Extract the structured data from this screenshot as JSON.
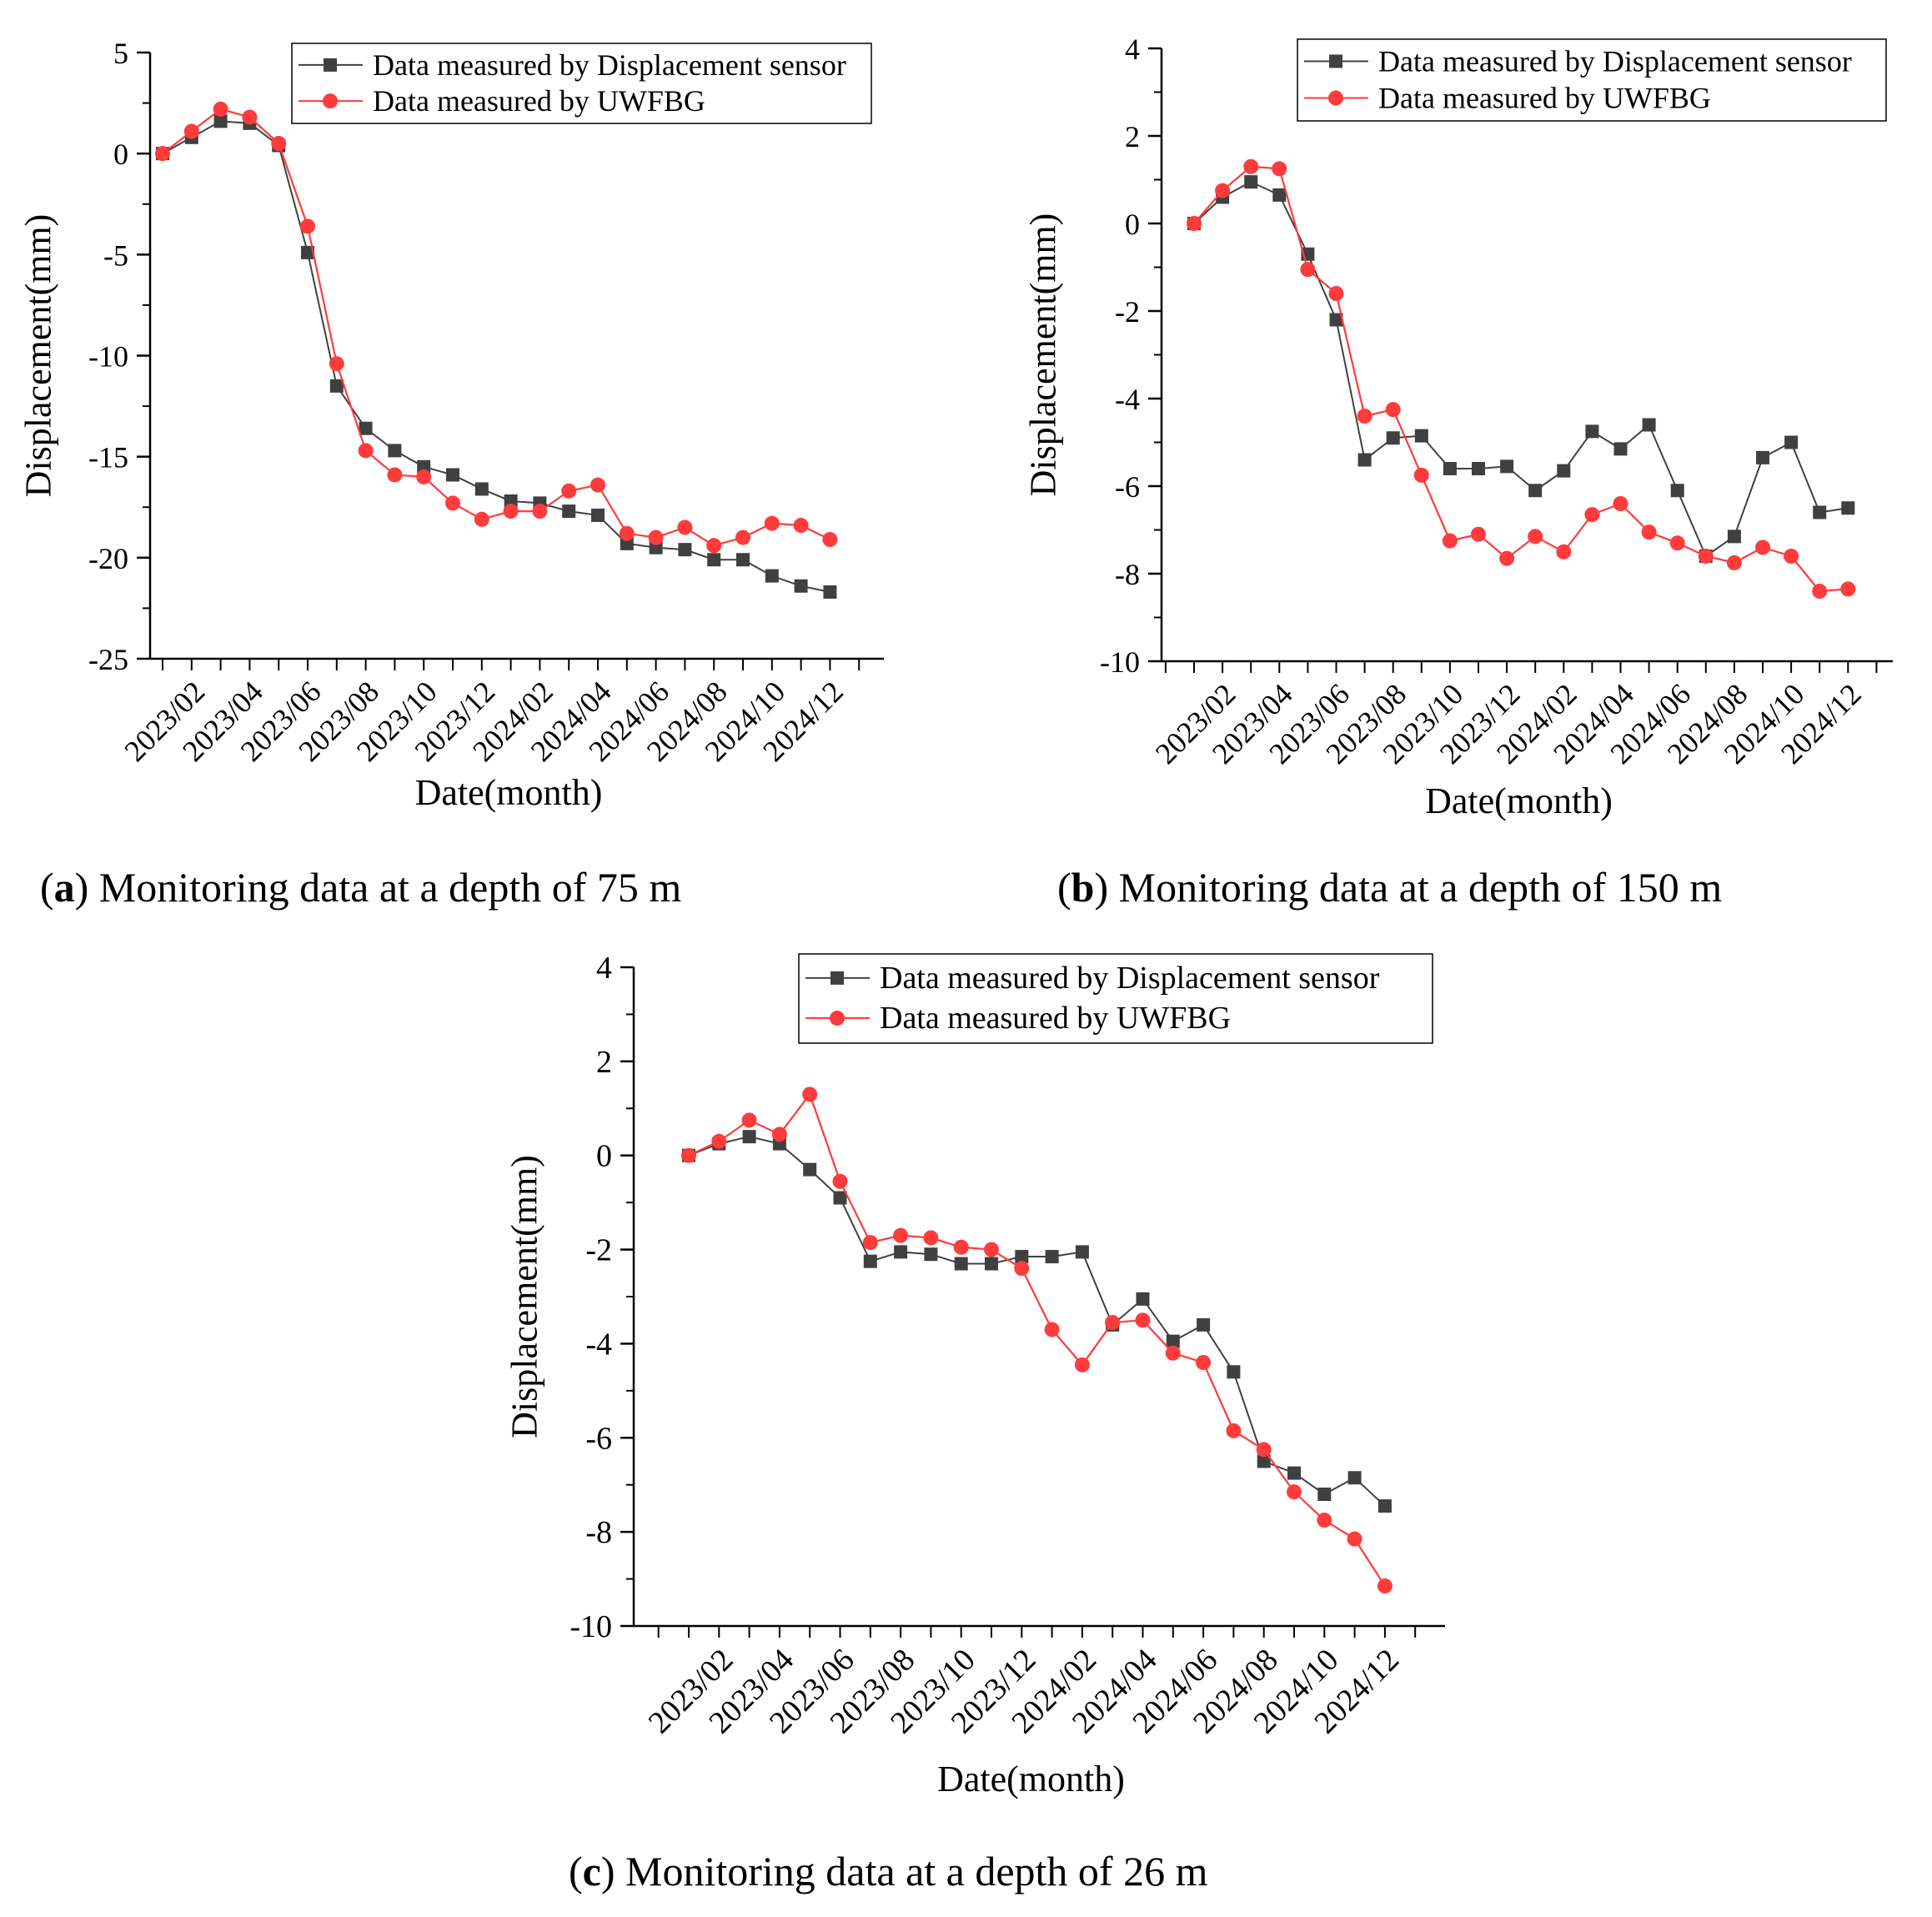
{
  "chart_data": [
    {
      "id": "a",
      "type": "line",
      "xlabel": "Date(month)",
      "ylabel": "Displacement(mm)",
      "ylim": [
        -25,
        5
      ],
      "yticks": [
        5,
        0,
        -5,
        -10,
        -15,
        -20,
        -25
      ],
      "x_tick_labels": [
        "2023/02",
        "2023/04",
        "2023/06",
        "2023/08",
        "2023/10",
        "2023/12",
        "2024/02",
        "2024/04",
        "2024/06",
        "2024/08",
        "2024/10",
        "2024/12"
      ],
      "x": [
        "2023/01",
        "2023/02",
        "2023/03",
        "2023/04",
        "2023/05",
        "2023/06",
        "2023/07",
        "2023/08",
        "2023/09",
        "2023/10",
        "2023/11",
        "2023/12",
        "2024/01",
        "2024/02",
        "2024/03",
        "2024/04",
        "2024/05",
        "2024/06",
        "2024/07",
        "2024/08",
        "2024/09",
        "2024/10",
        "2024/11",
        "2024/12"
      ],
      "legend_position": "top-right",
      "series": [
        {
          "name": "Data measured by Displacement sensor",
          "color": "#404040",
          "marker": "square",
          "values": [
            0,
            0.8,
            1.6,
            1.5,
            0.4,
            -4.9,
            -11.5,
            -13.6,
            -14.7,
            -15.5,
            -15.9,
            -16.6,
            -17.2,
            -17.3,
            -17.7,
            -17.9,
            -19.3,
            -19.5,
            -19.6,
            -20.1,
            -20.1,
            -20.9,
            -21.4,
            -21.7
          ]
        },
        {
          "name": "Data measured by UWFBG",
          "color": "#ff3b3b",
          "marker": "circle",
          "values": [
            0,
            1.1,
            2.2,
            1.8,
            0.5,
            -3.6,
            -10.4,
            -14.7,
            -15.9,
            -16.0,
            -17.3,
            -18.1,
            -17.7,
            -17.7,
            -16.7,
            -16.4,
            -18.8,
            -19.0,
            -18.5,
            -19.4,
            -19.0,
            -18.3,
            -18.4,
            -19.1
          ]
        }
      ]
    },
    {
      "id": "b",
      "type": "line",
      "xlabel": "Date(month)",
      "ylabel": "Displacement(mm)",
      "ylim": [
        -10,
        4
      ],
      "yticks": [
        4,
        2,
        0,
        -2,
        -4,
        -6,
        -8,
        -10
      ],
      "x_tick_labels": [
        "2023/02",
        "2023/04",
        "2023/06",
        "2023/08",
        "2023/10",
        "2023/12",
        "2024/02",
        "2024/04",
        "2024/06",
        "2024/08",
        "2024/10",
        "2024/12"
      ],
      "x": [
        "2023/01",
        "2023/02",
        "2023/03",
        "2023/04",
        "2023/05",
        "2023/06",
        "2023/07",
        "2023/08",
        "2023/09",
        "2023/10",
        "2023/11",
        "2023/12",
        "2024/01",
        "2024/02",
        "2024/03",
        "2024/04",
        "2024/05",
        "2024/06",
        "2024/07",
        "2024/08",
        "2024/09",
        "2024/10",
        "2024/11",
        "2024/12"
      ],
      "legend_position": "top-right",
      "series": [
        {
          "name": "Data measured by Displacement sensor",
          "color": "#404040",
          "marker": "square",
          "values": [
            0,
            0.6,
            0.95,
            0.65,
            -0.7,
            -2.2,
            -5.4,
            -4.9,
            -4.85,
            -5.6,
            -5.6,
            -5.55,
            -6.1,
            -5.65,
            -4.75,
            -5.15,
            -4.6,
            -6.1,
            -7.6,
            -7.15,
            -5.35,
            -5.0,
            -6.6,
            -6.5
          ]
        },
        {
          "name": "Data measured by UWFBG",
          "color": "#ff3b3b",
          "marker": "circle",
          "values": [
            0,
            0.75,
            1.3,
            1.25,
            -1.05,
            -1.6,
            -4.4,
            -4.25,
            -5.75,
            -7.25,
            -7.1,
            -7.65,
            -7.15,
            -7.5,
            -6.65,
            -6.4,
            -7.05,
            -7.3,
            -7.6,
            -7.75,
            -7.4,
            -7.6,
            -8.4,
            -8.35
          ]
        }
      ]
    },
    {
      "id": "c",
      "type": "line",
      "xlabel": "Date(month)",
      "ylabel": "Displacement(mm)",
      "ylim": [
        -10,
        4
      ],
      "yticks": [
        4,
        2,
        0,
        -2,
        -4,
        -6,
        -8,
        -10
      ],
      "x_tick_labels": [
        "2023/02",
        "2023/04",
        "2023/06",
        "2023/08",
        "2023/10",
        "2023/12",
        "2024/02",
        "2024/04",
        "2024/06",
        "2024/08",
        "2024/10",
        "2024/12"
      ],
      "x": [
        "2023/01",
        "2023/02",
        "2023/03",
        "2023/04",
        "2023/05",
        "2023/06",
        "2023/07",
        "2023/08",
        "2023/09",
        "2023/10",
        "2023/11",
        "2023/12",
        "2024/01",
        "2024/02",
        "2024/03",
        "2024/04",
        "2024/05",
        "2024/06",
        "2024/07",
        "2024/08",
        "2024/09",
        "2024/10",
        "2024/11",
        "2024/12"
      ],
      "legend_position": "top-right",
      "series": [
        {
          "name": "Data measured by Displacement sensor",
          "color": "#404040",
          "marker": "square",
          "values": [
            0,
            0.25,
            0.4,
            0.25,
            -0.3,
            -0.9,
            -2.25,
            -2.05,
            -2.1,
            -2.3,
            -2.3,
            -2.15,
            -2.15,
            -2.05,
            -3.6,
            -3.05,
            -3.95,
            -3.6,
            -4.6,
            -6.5,
            -6.75,
            -7.2,
            -6.85,
            -7.45
          ]
        },
        {
          "name": "Data measured by UWFBG",
          "color": "#ff3b3b",
          "marker": "circle",
          "values": [
            0,
            0.3,
            0.75,
            0.45,
            1.3,
            -0.55,
            -1.85,
            -1.7,
            -1.75,
            -1.95,
            -2.0,
            -2.4,
            -3.7,
            -4.45,
            -3.55,
            -3.5,
            -4.2,
            -4.4,
            -5.85,
            -6.25,
            -7.15,
            -7.75,
            -8.15,
            -9.15
          ]
        }
      ]
    }
  ],
  "captions": [
    {
      "id": "a",
      "label": "a",
      "text": ") Monitoring data at a depth of 75 m"
    },
    {
      "id": "b",
      "label": "b",
      "text": ") Monitoring data at a depth of 150 m"
    },
    {
      "id": "c",
      "label": "c",
      "text": ") Monitoring data at a depth of 26 m"
    }
  ]
}
